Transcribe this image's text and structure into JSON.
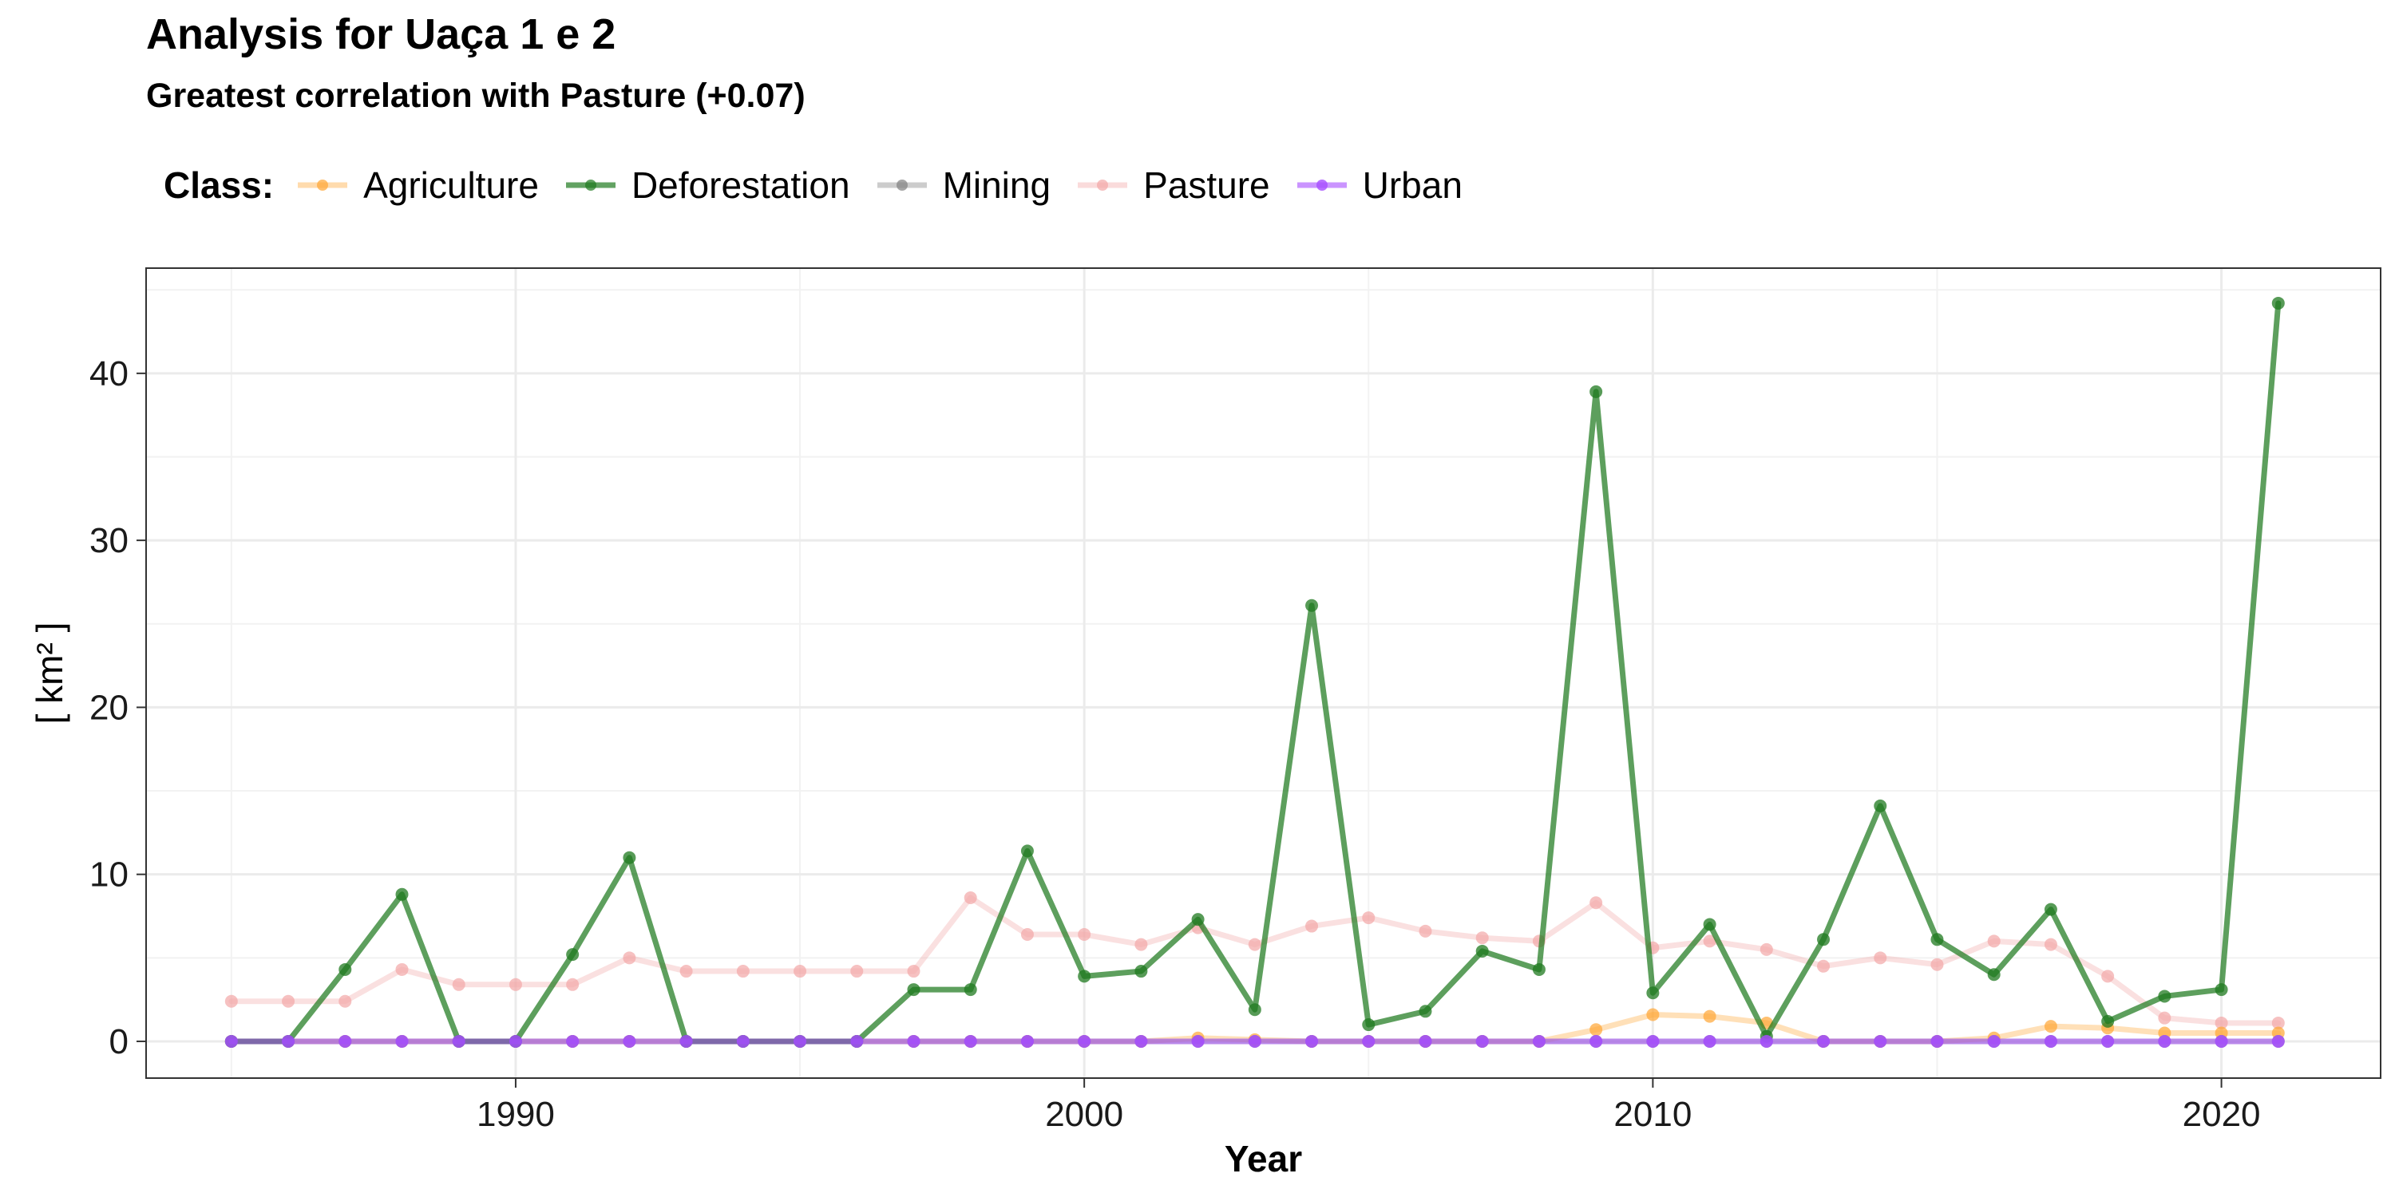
{
  "title": "Analysis for Uaça 1 e 2",
  "subtitle": "Greatest correlation with Pasture (+0.07)",
  "legend": {
    "title": "Class:",
    "items": [
      "Agriculture",
      "Deforestation",
      "Mining",
      "Pasture",
      "Urban"
    ]
  },
  "colors": {
    "Agriculture": "#FFA533",
    "Deforestation": "#1F7A1F",
    "Mining": "#808080",
    "Pasture": "#F2A6A6",
    "Urban": "#A64DFF"
  },
  "chart_data": {
    "type": "line",
    "title": "Analysis for Uaça 1 e 2",
    "subtitle": "Greatest correlation with Pasture (+0.07)",
    "xlabel": "Year",
    "ylabel": "[ km² ]",
    "xlim": [
      1983.5,
      2022.8
    ],
    "ylim": [
      -2.2,
      46.3
    ],
    "xticks": [
      1990,
      2000,
      2010,
      2020
    ],
    "yticks": [
      0,
      10,
      20,
      30,
      40
    ],
    "grid": true,
    "legend_position": "top",
    "x": [
      1985,
      1986,
      1987,
      1988,
      1989,
      1990,
      1991,
      1992,
      1993,
      1994,
      1995,
      1996,
      1997,
      1998,
      1999,
      2000,
      2001,
      2002,
      2003,
      2004,
      2005,
      2006,
      2007,
      2008,
      2009,
      2010,
      2011,
      2012,
      2013,
      2014,
      2015,
      2016,
      2017,
      2018,
      2019,
      2020,
      2021
    ],
    "series": [
      {
        "name": "Pasture",
        "values": [
          2.4,
          2.4,
          2.4,
          4.3,
          3.4,
          3.4,
          3.4,
          5.0,
          4.2,
          4.2,
          4.2,
          4.2,
          4.2,
          8.6,
          6.4,
          6.4,
          5.8,
          6.8,
          5.8,
          6.9,
          7.4,
          6.6,
          6.2,
          6.0,
          8.3,
          5.6,
          6.0,
          5.5,
          4.5,
          5.0,
          4.6,
          6.0,
          5.8,
          3.9,
          1.4,
          1.1,
          1.1
        ]
      },
      {
        "name": "Agriculture",
        "values": [
          0,
          0,
          0,
          0,
          0,
          0,
          0,
          0,
          0,
          0,
          0,
          0,
          0,
          0,
          0,
          0,
          0,
          0.2,
          0.1,
          0,
          0,
          0,
          0,
          0,
          0.7,
          1.6,
          1.5,
          1.1,
          0,
          0,
          0,
          0.2,
          0.9,
          0.8,
          0.5,
          0.5,
          0.5
        ]
      },
      {
        "name": "Mining",
        "values": [
          0,
          0,
          0,
          0,
          0,
          0,
          0,
          0,
          0,
          0,
          0,
          0,
          0,
          0,
          0,
          0,
          0,
          0,
          0,
          0,
          0,
          0,
          0,
          0,
          0,
          0,
          0,
          0,
          0,
          0,
          0,
          0,
          0,
          0,
          0,
          0,
          0
        ]
      },
      {
        "name": "Deforestation",
        "values": [
          0,
          0,
          4.3,
          8.8,
          0,
          0,
          5.2,
          11.0,
          0,
          0,
          0,
          0,
          3.1,
          3.1,
          11.4,
          3.9,
          4.2,
          7.3,
          1.9,
          26.1,
          1.0,
          1.8,
          5.4,
          4.3,
          38.9,
          2.9,
          7.0,
          0.3,
          6.1,
          14.1,
          6.1,
          4.0,
          7.9,
          1.2,
          2.7,
          3.1,
          44.2
        ]
      },
      {
        "name": "Urban",
        "values": [
          0,
          0,
          0,
          0,
          0,
          0,
          0,
          0,
          0,
          0,
          0,
          0,
          0,
          0,
          0,
          0,
          0,
          0,
          0,
          0,
          0,
          0,
          0,
          0,
          0,
          0,
          0,
          0,
          0,
          0,
          0,
          0,
          0,
          0,
          0,
          0,
          0
        ]
      }
    ]
  }
}
